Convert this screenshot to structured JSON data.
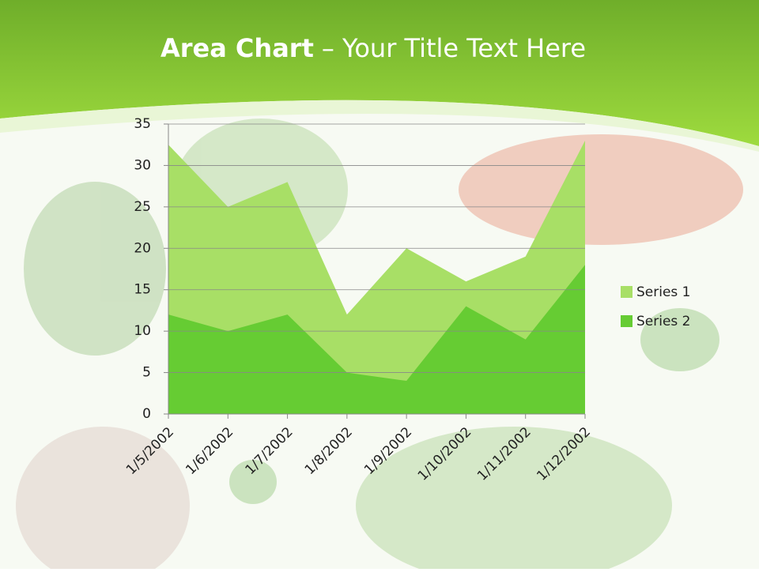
{
  "chart_data": {
    "type": "area",
    "title": {
      "bold": "Area Chart",
      "rest": "– Your Title Text Here"
    },
    "categories": [
      "1/5/2002",
      "1/6/2002",
      "1/7/2002",
      "1/8/2002",
      "1/9/2002",
      "1/10/2002",
      "1/11/2002",
      "1/12/2002"
    ],
    "series": [
      {
        "name": "Series 1",
        "color": "#a8df66",
        "values": [
          32.5,
          25,
          28,
          12,
          20,
          16,
          19,
          33
        ]
      },
      {
        "name": "Series 2",
        "color": "#66cc33",
        "values": [
          12,
          10,
          12,
          5,
          4,
          13,
          9,
          18
        ]
      }
    ],
    "ylim": [
      0,
      35
    ],
    "yticks": [
      0,
      5,
      10,
      15,
      20,
      25,
      30,
      35
    ],
    "grid": true,
    "legend": "right"
  }
}
